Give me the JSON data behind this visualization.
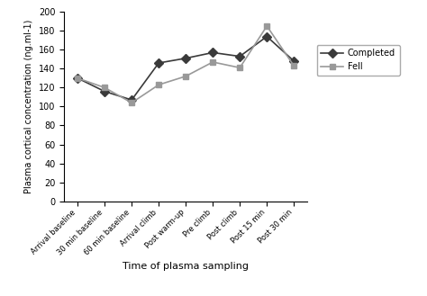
{
  "x_labels": [
    "Arrival baseline",
    "30 min baseline",
    "60 min baseline",
    "Arrival climb",
    "Post warm-up",
    "Pre climb",
    "Post climb",
    "Post 15 min",
    "Post 30 min"
  ],
  "completed_values": [
    130,
    116,
    107,
    146,
    151,
    157,
    153,
    174,
    148
  ],
  "fell_values": [
    130,
    120,
    104,
    123,
    132,
    147,
    141,
    185,
    143
  ],
  "completed_color": "#3a3a3a",
  "fell_color": "#999999",
  "ylabel": "Plasma cortical concentration (ng.ml-1)",
  "xlabel": "Time of plasma sampling",
  "ylim": [
    0,
    200
  ],
  "yticks": [
    0,
    20,
    40,
    60,
    80,
    100,
    120,
    140,
    160,
    180,
    200
  ],
  "legend_labels": [
    "Completed",
    "Fell"
  ],
  "completed_marker": "D",
  "fell_marker": "s",
  "linewidth": 1.2,
  "markersize": 5,
  "ylabel_fontsize": 7,
  "xlabel_fontsize": 8,
  "tick_fontsize": 7,
  "xtick_fontsize": 6
}
